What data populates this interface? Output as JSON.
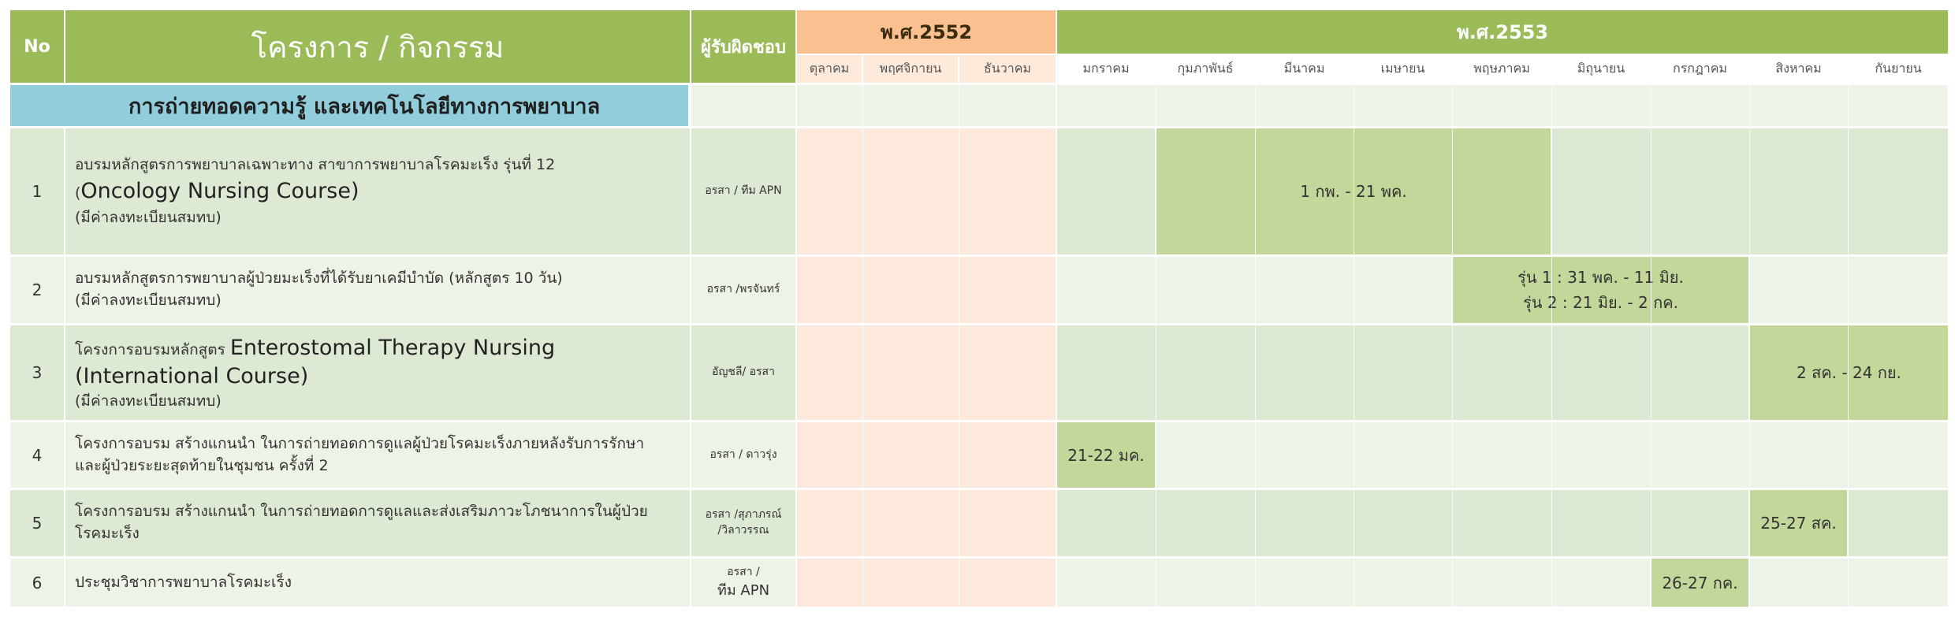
{
  "header": {
    "no": "No",
    "project": "โครงการ / กิจกรรม",
    "responsible": "ผู้รับผิดชอบ",
    "year_2552": "พ.ศ.2552",
    "year_2553": "พ.ศ.2553",
    "months_2552": [
      "ตุลาคม",
      "พฤศจิกายน",
      "ธันวาคม"
    ],
    "months_2553": [
      "มกราคม",
      "กุมภาพันธ์",
      "มีนาคม",
      "เมษายน",
      "พฤษภาคม",
      "มิถุนายน",
      "กรกฎาคม",
      "สิงหาคม",
      "กันยายน"
    ]
  },
  "section": {
    "title": "การถ่ายทอดความรู้ และเทคโนโลยีทางการพยาบาล"
  },
  "rows": [
    {
      "no": "1",
      "line1": "อบรมหลักสูตรการพยาบาลเฉพาะทาง สาขาการพยาบาลโรคมะเร็ง  รุ่นที่ 12",
      "line2_prefix": "(",
      "line2_big": "Oncology Nursing Course)",
      "line3_prefix": "(",
      "line3": "มีค่าลงทะเบียนสมทบ)",
      "resp1": "อรสา / ทีม APN",
      "resp2": "",
      "bar1": "1 กพ. - 21 พค.",
      "bar2": ""
    },
    {
      "no": "2",
      "line1": "อบรมหลักสูตรการพยาบาลผู้ป่วยมะเร็งที่ได้รับยาเคมีบำบัด (หลักสูตร 10 วัน)",
      "line2": "(มีค่าลงทะเบียนสมทบ)",
      "resp1": "อรสา /พรจันทร์",
      "bar1": "รุ่น 1 :  31 พค. - 11 มิย.",
      "bar2": "รุ่น 2 :  21 มิย. -   2 กค."
    },
    {
      "no": "3",
      "line1_prefix": "โครงการอบรมหลักสูตร ",
      "line1_big": "Enterostomal Therapy Nursing",
      "line2_big": "(International Course)",
      "line3_prefix": "(",
      "line3": "มีค่าลงทะเบียนสมทบ)",
      "resp1": "อัญชลี/ อรสา",
      "bar1": "2 สค. - 24 กย."
    },
    {
      "no": "4",
      "line1": "โครงการอบรม สร้างแกนนำ ในการถ่ายทอดการดูแลผู้ป่วยโรคมะเร็งภายหลังรับการรักษา",
      "line2": "และผู้ป่วยระยะสุดท้ายในชุมชน ครั้งที่ 2",
      "resp1": "อรสา / ดาวรุ่ง",
      "bar1": "21-22 มค."
    },
    {
      "no": "5",
      "line1": "โครงการอบรม สร้างแกนนำ ในการถ่ายทอดการดูแลและส่งเสริมภาวะโภชนาการในผู้ป่วย",
      "line2": "โรคมะเร็ง",
      "resp1": "อรสา /สุภาภรณ์",
      "resp2": "/วิลาวรรณ",
      "bar1": "25-27 สค."
    },
    {
      "no": "6",
      "line1": "ประชุมวิชาการพยาบาลโรคมะเร็ง",
      "resp1": "อรสา /",
      "resp2": "ทีม APN",
      "bar1": "26-27 กค."
    }
  ],
  "colors": {
    "header_green": "#9bbb59",
    "header_orange": "#fac090",
    "section_blue": "#92cddc",
    "row_dark": "#dde9d3",
    "row_light": "#eef3e8",
    "col_2552": "#fde9dc",
    "bar": "#c4d79b"
  }
}
